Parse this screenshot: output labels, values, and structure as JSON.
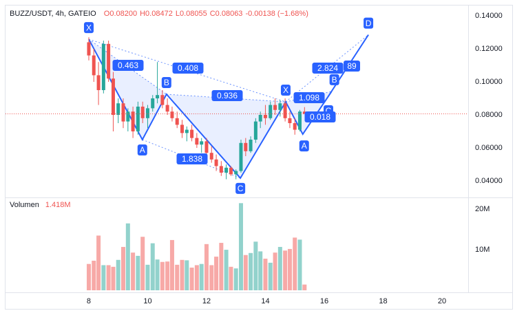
{
  "chart_data": [
    {
      "type": "candlestick",
      "title": "BUZZ/USDT, 4h, GATEIO",
      "ohlc_labels": [
        "O0.08200",
        "H0.08472",
        "L0.08055",
        "C0.08063",
        "-0.00138 (−1.68%)"
      ],
      "up_color": "#26a69a",
      "down_color": "#ef5350",
      "x": [
        8,
        8.17,
        8.33,
        8.5,
        8.67,
        8.83,
        9,
        9.17,
        9.33,
        9.5,
        9.67,
        9.83,
        10,
        10.17,
        10.33,
        10.5,
        10.67,
        10.83,
        11,
        11.17,
        11.33,
        11.5,
        11.67,
        11.83,
        12,
        12.17,
        12.33,
        12.5,
        12.67,
        12.83,
        13,
        13.17,
        13.33,
        13.5,
        13.67,
        13.83,
        14,
        14.17,
        14.33,
        14.5,
        14.67,
        14.83,
        15,
        15.17,
        15.33
      ],
      "open": [
        0.124,
        0.116,
        0.104,
        0.095,
        0.123,
        0.102,
        0.08,
        0.087,
        0.076,
        0.082,
        0.07,
        0.085,
        0.078,
        0.084,
        0.09,
        0.092,
        0.086,
        0.082,
        0.078,
        0.074,
        0.069,
        0.071,
        0.066,
        0.062,
        0.064,
        0.057,
        0.053,
        0.049,
        0.045,
        0.048,
        0.044,
        0.046,
        0.063,
        0.058,
        0.065,
        0.076,
        0.08,
        0.078,
        0.086,
        0.083,
        0.087,
        0.078,
        0.075,
        0.071,
        0.082
      ],
      "high": [
        0.127,
        0.12,
        0.112,
        0.125,
        0.125,
        0.106,
        0.09,
        0.09,
        0.084,
        0.085,
        0.088,
        0.088,
        0.086,
        0.092,
        0.112,
        0.095,
        0.09,
        0.085,
        0.082,
        0.077,
        0.073,
        0.074,
        0.069,
        0.066,
        0.066,
        0.061,
        0.056,
        0.052,
        0.05,
        0.049,
        0.047,
        0.065,
        0.066,
        0.067,
        0.078,
        0.082,
        0.086,
        0.088,
        0.09,
        0.089,
        0.09,
        0.082,
        0.078,
        0.083,
        0.08472
      ],
      "low": [
        0.113,
        0.1,
        0.086,
        0.093,
        0.1,
        0.07,
        0.075,
        0.072,
        0.07,
        0.066,
        0.068,
        0.075,
        0.072,
        0.082,
        0.087,
        0.084,
        0.08,
        0.076,
        0.072,
        0.066,
        0.064,
        0.064,
        0.06,
        0.057,
        0.055,
        0.051,
        0.046,
        0.043,
        0.041,
        0.043,
        0.041,
        0.045,
        0.055,
        0.057,
        0.063,
        0.072,
        0.074,
        0.077,
        0.08,
        0.079,
        0.076,
        0.072,
        0.068,
        0.07,
        0.08055
      ],
      "close": [
        0.116,
        0.104,
        0.095,
        0.123,
        0.102,
        0.08,
        0.087,
        0.076,
        0.082,
        0.07,
        0.085,
        0.078,
        0.084,
        0.09,
        0.092,
        0.086,
        0.082,
        0.078,
        0.074,
        0.069,
        0.071,
        0.066,
        0.062,
        0.064,
        0.057,
        0.053,
        0.049,
        0.045,
        0.048,
        0.044,
        0.046,
        0.063,
        0.058,
        0.065,
        0.076,
        0.08,
        0.078,
        0.086,
        0.083,
        0.087,
        0.078,
        0.075,
        0.071,
        0.082,
        0.08063
      ],
      "xlim": [
        5.17,
        20.89
      ],
      "xticks": [
        8,
        10,
        12,
        14,
        16,
        18,
        20
      ],
      "ylim": [
        0.03083,
        0.14625
      ],
      "yticks": [
        {
          "value": 0.04,
          "label": "0.04000"
        },
        {
          "value": 0.06,
          "label": "0.06000"
        },
        {
          "value": 0.08,
          "label": "0.08000"
        },
        {
          "value": 0.1,
          "label": "0.10000"
        },
        {
          "value": 0.12,
          "label": "0.12000"
        },
        {
          "value": 0.14,
          "label": "0.14000"
        }
      ],
      "grid": true,
      "pattern_color": "#2962ff",
      "patterns": [
        {
          "points": [
            {
              "label": "X",
              "x": 8.0,
              "y": 0.1258
            },
            {
              "label": "A",
              "x": 9.82,
              "y": 0.065
            },
            {
              "label": "B",
              "x": 10.64,
              "y": 0.0925
            },
            {
              "label": "C",
              "x": 13.15,
              "y": 0.0417
            }
          ],
          "ratios": [
            0.463,
            0.408,
            0.936,
            1.838
          ]
        },
        {
          "points": [
            {
              "label": "X",
              "x": 14.69,
              "y": 0.0879
            },
            {
              "label": "A",
              "x": 15.27,
              "y": 0.0683
            },
            {
              "label": "B",
              "x": 16.25,
              "y": 0.0942
            },
            {
              "label": "C",
              "x": 16.0,
              "y": 0.0875
            },
            {
              "label": "D",
              "x": 17.5,
              "y": 0.1285
            }
          ],
          "ratios": [
            1.098,
            0.018,
            2.824,
            89
          ]
        }
      ]
    },
    {
      "type": "bar",
      "title": "Volumen",
      "last_label": "1.418M",
      "values": [
        6500000,
        7300000,
        13500000,
        6200000,
        6200000,
        5800000,
        7500000,
        10700000,
        16500000,
        9300000,
        8500000,
        13200000,
        6300000,
        11600000,
        7600000,
        7000000,
        7100000,
        12400000,
        6300000,
        7500000,
        7400000,
        5600000,
        6200000,
        6500000,
        11400000,
        6200000,
        8300000,
        11700000,
        10000000,
        5800000,
        5400000,
        21500000,
        8700000,
        9200000,
        12000000,
        9600000,
        7800000,
        6800000,
        9300000,
        10700000,
        9800000,
        10200000,
        13000000,
        12500000,
        1418000
      ],
      "ylim": [
        0,
        22400000
      ],
      "yticks": [
        {
          "value": 10000000,
          "label": "10M"
        },
        {
          "value": 20000000,
          "label": "20M"
        }
      ]
    }
  ]
}
